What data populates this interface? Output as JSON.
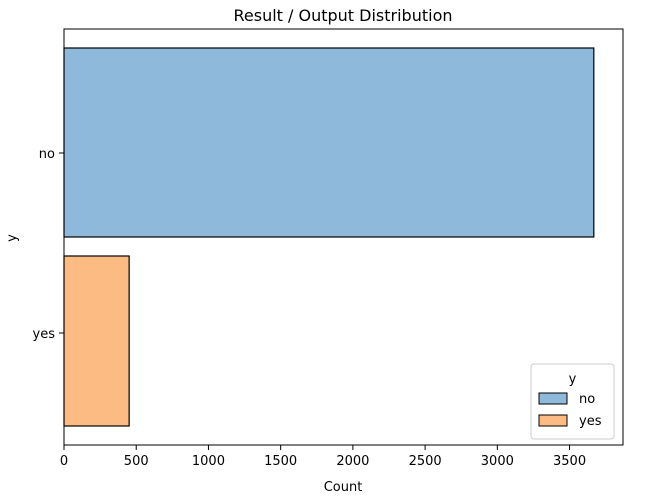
{
  "chart_data": {
    "type": "bar",
    "orientation": "horizontal",
    "title": "Result / Output Distribution",
    "xlabel": "Count",
    "ylabel": "y",
    "categories": [
      "no",
      "yes"
    ],
    "series": [
      {
        "name": "no",
        "values": [
          3668,
          0
        ],
        "color": "#8fb9da"
      },
      {
        "name": "yes",
        "values": [
          0,
          451
        ],
        "color": "#fdbb84"
      }
    ],
    "xlim": [
      0,
      3870
    ],
    "x_ticks": [
      0,
      500,
      1000,
      1500,
      2000,
      2500,
      3000,
      3500
    ],
    "grid": false,
    "legend": {
      "title": "y",
      "placement": "lower-right",
      "entries": [
        "no",
        "yes"
      ]
    }
  }
}
